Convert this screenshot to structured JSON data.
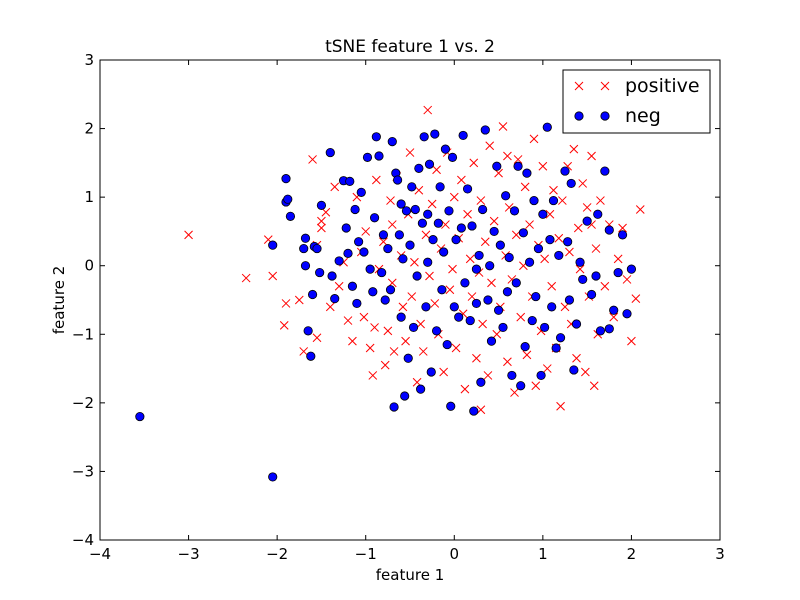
{
  "chart_data": {
    "type": "scatter",
    "title": "tSNE feature 1 vs. 2",
    "xlabel": "feature 1",
    "ylabel": "feature 2",
    "xlim": [
      -4,
      3
    ],
    "ylim": [
      -4,
      3
    ],
    "xticks": [
      -4,
      -3,
      -2,
      -1,
      0,
      1,
      2,
      3
    ],
    "yticks": [
      -4,
      -3,
      -2,
      -1,
      0,
      1,
      2,
      3
    ],
    "xtick_labels": [
      "−4",
      "−3",
      "−2",
      "−1",
      "0",
      "1",
      "2",
      "3"
    ],
    "ytick_labels": [
      "−4",
      "−3",
      "−2",
      "−1",
      "0",
      "1",
      "2",
      "3"
    ],
    "grid": false,
    "legend": "top-right",
    "series": [
      {
        "name": "positive",
        "marker": "x",
        "color": "#ff0000",
        "points": [
          [
            -3.0,
            0.45
          ],
          [
            -2.35,
            -0.18
          ],
          [
            -2.1,
            0.38
          ],
          [
            -2.05,
            -0.15
          ],
          [
            -1.92,
            -0.87
          ],
          [
            -1.9,
            -0.55
          ],
          [
            -1.75,
            -0.5
          ],
          [
            -1.7,
            -1.25
          ],
          [
            -1.6,
            1.55
          ],
          [
            -1.55,
            0.3
          ],
          [
            -1.55,
            -1.05
          ],
          [
            -1.5,
            0.55
          ],
          [
            -1.5,
            0.65
          ],
          [
            -1.45,
            0.78
          ],
          [
            -1.4,
            -0.6
          ],
          [
            -1.35,
            1.15
          ],
          [
            -1.3,
            -0.3
          ],
          [
            -1.25,
            0.05
          ],
          [
            -1.2,
            -0.8
          ],
          [
            -1.15,
            -1.1
          ],
          [
            -1.1,
            1.0
          ],
          [
            -1.05,
            0.2
          ],
          [
            -1.02,
            -0.75
          ],
          [
            -1.0,
            0.5
          ],
          [
            -0.95,
            -1.2
          ],
          [
            -0.92,
            -1.6
          ],
          [
            -0.9,
            -0.9
          ],
          [
            -0.88,
            1.25
          ],
          [
            -0.85,
            -0.05
          ],
          [
            -0.8,
            0.35
          ],
          [
            -0.78,
            -1.45
          ],
          [
            -0.75,
            -0.95
          ],
          [
            -0.72,
            0.95
          ],
          [
            -0.7,
            -0.25
          ],
          [
            -0.68,
            -1.25
          ],
          [
            -0.65,
            1.3
          ],
          [
            -0.6,
            0.15
          ],
          [
            -0.58,
            -0.6
          ],
          [
            -0.55,
            -1.1
          ],
          [
            -0.52,
            0.75
          ],
          [
            -0.5,
            1.65
          ],
          [
            -0.48,
            -0.45
          ],
          [
            -0.45,
            0.05
          ],
          [
            -0.42,
            -1.7
          ],
          [
            -0.4,
            1.1
          ],
          [
            -0.38,
            -0.85
          ],
          [
            -0.35,
            -1.25
          ],
          [
            -0.32,
            0.45
          ],
          [
            -0.3,
            2.27
          ],
          [
            -0.28,
            -0.15
          ],
          [
            -0.25,
            0.9
          ],
          [
            -0.22,
            -0.55
          ],
          [
            -0.2,
            1.4
          ],
          [
            -0.18,
            -1.0
          ],
          [
            -0.15,
            0.25
          ],
          [
            -0.12,
            -1.55
          ],
          [
            -0.1,
            0.6
          ],
          [
            -0.08,
            1.65
          ],
          [
            -0.05,
            -0.35
          ],
          [
            -0.02,
            -0.05
          ],
          [
            0.0,
            1.0
          ],
          [
            0.02,
            -1.2
          ],
          [
            0.05,
            0.4
          ],
          [
            0.08,
            1.25
          ],
          [
            0.1,
            -0.7
          ],
          [
            0.12,
            -1.8
          ],
          [
            0.15,
            0.75
          ],
          [
            0.18,
            0.1
          ],
          [
            0.2,
            -0.45
          ],
          [
            0.22,
            1.5
          ],
          [
            0.25,
            -1.35
          ],
          [
            0.28,
            -0.1
          ],
          [
            0.3,
            0.95
          ],
          [
            0.32,
            -0.85
          ],
          [
            0.35,
            0.35
          ],
          [
            0.38,
            -1.6
          ],
          [
            0.4,
            1.75
          ],
          [
            0.42,
            -0.25
          ],
          [
            0.45,
            0.65
          ],
          [
            0.48,
            -1.0
          ],
          [
            0.5,
            1.35
          ],
          [
            0.52,
            -0.6
          ],
          [
            0.55,
            2.03
          ],
          [
            0.58,
            0.15
          ],
          [
            0.6,
            -1.4
          ],
          [
            0.62,
            0.85
          ],
          [
            0.65,
            -0.2
          ],
          [
            0.68,
            -1.85
          ],
          [
            0.7,
            0.45
          ],
          [
            0.72,
            1.55
          ],
          [
            0.75,
            -0.75
          ],
          [
            0.78,
            0.0
          ],
          [
            0.8,
            1.15
          ],
          [
            0.82,
            -1.3
          ],
          [
            0.85,
            0.6
          ],
          [
            0.88,
            -0.45
          ],
          [
            0.9,
            1.85
          ],
          [
            0.92,
            -1.75
          ],
          [
            0.95,
            0.3
          ],
          [
            0.98,
            -0.95
          ],
          [
            1.0,
            1.45
          ],
          [
            1.02,
            0.1
          ],
          [
            1.05,
            -1.5
          ],
          [
            1.08,
            0.75
          ],
          [
            1.1,
            -0.3
          ],
          [
            1.12,
            1.1
          ],
          [
            1.15,
            -1.2
          ],
          [
            1.18,
            0.4
          ],
          [
            1.2,
            -2.05
          ],
          [
            1.22,
            0.95
          ],
          [
            1.25,
            -0.6
          ],
          [
            1.28,
            1.45
          ],
          [
            1.3,
            0.2
          ],
          [
            1.32,
            -0.85
          ],
          [
            1.35,
            1.7
          ],
          [
            1.38,
            -1.35
          ],
          [
            1.4,
            0.55
          ],
          [
            1.42,
            -0.05
          ],
          [
            1.45,
            1.2
          ],
          [
            1.48,
            -1.55
          ],
          [
            1.5,
            0.85
          ],
          [
            1.52,
            -0.45
          ],
          [
            1.55,
            1.6
          ],
          [
            1.58,
            -1.75
          ],
          [
            1.6,
            0.25
          ],
          [
            1.62,
            -1.0
          ],
          [
            1.65,
            0.95
          ],
          [
            1.7,
            -0.3
          ],
          [
            1.75,
            0.6
          ],
          [
            1.8,
            -0.75
          ],
          [
            1.85,
            0.1
          ],
          [
            1.9,
            0.55
          ],
          [
            1.95,
            -0.2
          ],
          [
            2.0,
            -1.1
          ],
          [
            2.05,
            -0.48
          ],
          [
            2.1,
            0.82
          ],
          [
            1.55,
            0.6
          ],
          [
            0.6,
            1.6
          ],
          [
            -0.7,
            0.6
          ],
          [
            0.3,
            -2.1
          ]
        ]
      },
      {
        "name": "neg",
        "marker": "o",
        "color": "#0000ff",
        "points": [
          [
            -3.55,
            -2.2
          ],
          [
            -2.05,
            -3.08
          ],
          [
            -2.05,
            0.3
          ],
          [
            -1.9,
            1.27
          ],
          [
            -1.9,
            0.93
          ],
          [
            -1.88,
            0.97
          ],
          [
            -1.85,
            0.72
          ],
          [
            -1.7,
            0.25
          ],
          [
            -1.68,
            0.0
          ],
          [
            -1.68,
            0.4
          ],
          [
            -1.65,
            -0.95
          ],
          [
            -1.62,
            -1.32
          ],
          [
            -1.6,
            -0.42
          ],
          [
            -1.58,
            0.28
          ],
          [
            -1.55,
            0.25
          ],
          [
            -1.52,
            -0.1
          ],
          [
            -1.5,
            0.88
          ],
          [
            -1.4,
            1.65
          ],
          [
            -1.38,
            -0.15
          ],
          [
            -1.35,
            -0.48
          ],
          [
            -1.3,
            0.07
          ],
          [
            -1.25,
            1.24
          ],
          [
            -1.22,
            0.55
          ],
          [
            -1.2,
            0.18
          ],
          [
            -1.18,
            1.23
          ],
          [
            -1.15,
            -0.3
          ],
          [
            -1.12,
            0.82
          ],
          [
            -1.1,
            -0.55
          ],
          [
            -1.08,
            0.35
          ],
          [
            -1.05,
            1.07
          ],
          [
            -1.02,
            0.2
          ],
          [
            -0.98,
            1.58
          ],
          [
            -0.95,
            -0.05
          ],
          [
            -0.92,
            -0.38
          ],
          [
            -0.9,
            0.7
          ],
          [
            -0.88,
            1.88
          ],
          [
            -0.85,
            1.6
          ],
          [
            -0.82,
            -0.1
          ],
          [
            -0.8,
            0.45
          ],
          [
            -0.78,
            -0.5
          ],
          [
            -0.75,
            0.25
          ],
          [
            -0.72,
            -0.35
          ],
          [
            -0.7,
            1.81
          ],
          [
            -0.68,
            -2.06
          ],
          [
            -0.66,
            1.35
          ],
          [
            -0.64,
            1.25
          ],
          [
            -0.62,
            0.45
          ],
          [
            -0.6,
            -0.75
          ],
          [
            -0.58,
            0.1
          ],
          [
            -0.56,
            -1.9
          ],
          [
            -0.54,
            0.8
          ],
          [
            -0.52,
            -1.35
          ],
          [
            -0.5,
            0.3
          ],
          [
            -0.48,
            1.15
          ],
          [
            -0.46,
            -0.9
          ],
          [
            -0.44,
            0.82
          ],
          [
            -0.42,
            -0.15
          ],
          [
            -0.4,
            1.42
          ],
          [
            -0.38,
            -1.8
          ],
          [
            -0.36,
            0.62
          ],
          [
            -0.34,
            1.88
          ],
          [
            -0.32,
            -0.6
          ],
          [
            -0.3,
            0.05
          ],
          [
            -0.28,
            1.48
          ],
          [
            -0.26,
            -1.55
          ],
          [
            -0.24,
            0.38
          ],
          [
            -0.22,
            1.92
          ],
          [
            -0.2,
            -0.95
          ],
          [
            -0.18,
            0.62
          ],
          [
            -0.16,
            1.15
          ],
          [
            -0.14,
            -0.35
          ],
          [
            -0.12,
            0.2
          ],
          [
            -0.1,
            1.7
          ],
          [
            -0.08,
            -1.15
          ],
          [
            -0.06,
            0.8
          ],
          [
            -0.04,
            -2.05
          ],
          [
            -0.02,
            1.58
          ],
          [
            0.0,
            -0.6
          ],
          [
            0.02,
            0.38
          ],
          [
            0.05,
            -0.75
          ],
          [
            0.08,
            0.55
          ],
          [
            0.1,
            1.9
          ],
          [
            0.12,
            -0.25
          ],
          [
            0.15,
            1.12
          ],
          [
            0.18,
            -0.8
          ],
          [
            0.2,
            0.58
          ],
          [
            0.22,
            -2.12
          ],
          [
            0.25,
            -0.55
          ],
          [
            0.28,
            0.15
          ],
          [
            0.3,
            -1.7
          ],
          [
            0.32,
            0.82
          ],
          [
            0.35,
            1.98
          ],
          [
            0.38,
            -0.5
          ],
          [
            0.4,
            0.0
          ],
          [
            0.42,
            -1.1
          ],
          [
            0.45,
            0.5
          ],
          [
            0.48,
            1.45
          ],
          [
            0.5,
            -0.65
          ],
          [
            0.52,
            0.3
          ],
          [
            0.55,
            -0.9
          ],
          [
            0.58,
            1.02
          ],
          [
            0.6,
            -0.38
          ],
          [
            0.62,
            0.12
          ],
          [
            0.65,
            -1.6
          ],
          [
            0.68,
            0.8
          ],
          [
            0.7,
            -0.25
          ],
          [
            0.72,
            1.45
          ],
          [
            0.75,
            -1.75
          ],
          [
            0.78,
            0.48
          ],
          [
            0.8,
            -1.18
          ],
          [
            0.82,
            1.35
          ],
          [
            0.85,
            0.05
          ],
          [
            0.88,
            -0.8
          ],
          [
            0.9,
            0.95
          ],
          [
            0.92,
            -0.45
          ],
          [
            0.95,
            0.25
          ],
          [
            0.98,
            -1.6
          ],
          [
            1.0,
            0.75
          ],
          [
            1.02,
            -0.9
          ],
          [
            1.05,
            2.02
          ],
          [
            1.08,
            0.38
          ],
          [
            1.1,
            -0.6
          ],
          [
            1.12,
            0.95
          ],
          [
            1.15,
            -1.2
          ],
          [
            1.18,
            0.15
          ],
          [
            1.2,
            -1.05
          ],
          [
            1.25,
            1.38
          ],
          [
            1.28,
            0.35
          ],
          [
            1.3,
            -0.5
          ],
          [
            1.32,
            1.2
          ],
          [
            1.35,
            -1.52
          ],
          [
            1.38,
            -0.85
          ],
          [
            1.42,
            0.05
          ],
          [
            1.45,
            -0.2
          ],
          [
            1.5,
            0.65
          ],
          [
            1.55,
            -0.42
          ],
          [
            1.6,
            -0.15
          ],
          [
            1.65,
            -0.95
          ],
          [
            1.7,
            1.38
          ],
          [
            1.75,
            0.52
          ],
          [
            1.8,
            -0.65
          ],
          [
            1.85,
            -0.1
          ],
          [
            1.9,
            0.45
          ],
          [
            1.95,
            -0.7
          ],
          [
            2.0,
            -0.05
          ],
          [
            1.62,
            0.75
          ],
          [
            1.75,
            -0.92
          ],
          [
            -0.3,
            0.75
          ],
          [
            0.25,
            -0.05
          ],
          [
            -0.6,
            0.9
          ]
        ]
      }
    ]
  }
}
